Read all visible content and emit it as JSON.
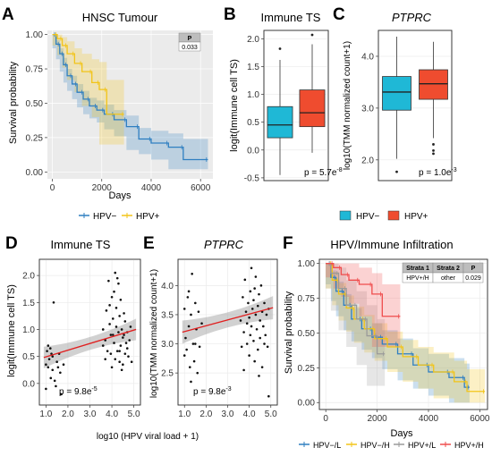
{
  "panels": {
    "A": {
      "letter": "A",
      "title": "HNSC Tumour",
      "ylabel": "Survival probability",
      "xlabel": "Days",
      "pbox_header": "P",
      "pbox_value": "0.033"
    },
    "B": {
      "letter": "B",
      "title": "Immune TS",
      "ylabel": "logit(Immune cell TS)",
      "pvalue": "p = 5.7e"
    },
    "C": {
      "letter": "C",
      "title": "PTPRC",
      "ylabel": "log10(TMM normalized count+1)",
      "pvalue": "p = 1.0e"
    },
    "D": {
      "letter": "D",
      "title": "Immune TS",
      "ylabel": "logit(Immune cell TS)",
      "pvalue": "p = 9.8e"
    },
    "E": {
      "letter": "E",
      "title": "PTPRC",
      "ylabel": "log10(TMM normalized count+1)",
      "pvalue": "p = 9.8e"
    },
    "F": {
      "letter": "F",
      "title": "HPV/Immune Infiltration",
      "ylabel": "Survival probability",
      "xlabel": "Days",
      "table_headers": [
        "Strata 1",
        "Strata 2",
        "P"
      ],
      "table_row": [
        "HPV+/H",
        "other",
        "0.029"
      ]
    },
    "shared_xlabel_DE": "log10 (HPV viral load + 1)"
  },
  "legends": {
    "A": [
      {
        "label": "HPV−",
        "color": "#2f7fc1"
      },
      {
        "label": "HPV+",
        "color": "#f2c418"
      }
    ],
    "BC": [
      {
        "label": "HPV−",
        "color": "#1fb8d6"
      },
      {
        "label": "HPV+",
        "color": "#ef4c2f"
      }
    ],
    "F": [
      {
        "label": "HPV−/L",
        "color": "#2f7fc1"
      },
      {
        "label": "HPV−/H",
        "color": "#f2c418"
      },
      {
        "label": "HPV+/L",
        "color": "#9a9a9a"
      },
      {
        "label": "HPV+/H",
        "color": "#ef4c4c"
      }
    ]
  },
  "chart_data": [
    {
      "panel": "A",
      "type": "line",
      "xlim": [
        -200,
        6500
      ],
      "ylim": [
        -0.05,
        1.03
      ],
      "xticks": [
        0,
        2000,
        4000,
        6000
      ],
      "yticks": [
        0.0,
        0.25,
        0.5,
        0.75,
        1.0
      ],
      "ytick_labels": [
        "0.00",
        "0.25",
        "0.50",
        "0.75",
        "1.00"
      ],
      "grid": true,
      "legend": "bottom",
      "series": [
        {
          "label": "HPV−",
          "color": "#2f7fc1",
          "x": [
            0,
            150,
            300,
            450,
            600,
            800,
            1000,
            1250,
            1500,
            1800,
            2100,
            2500,
            3000,
            3500,
            4000,
            4700,
            5300,
            6300
          ],
          "y": [
            1.0,
            0.93,
            0.86,
            0.78,
            0.7,
            0.64,
            0.58,
            0.53,
            0.48,
            0.45,
            0.42,
            0.38,
            0.33,
            0.24,
            0.21,
            0.18,
            0.09,
            0.09
          ],
          "lower": [
            1.0,
            0.9,
            0.82,
            0.73,
            0.65,
            0.59,
            0.53,
            0.47,
            0.42,
            0.39,
            0.36,
            0.31,
            0.26,
            0.16,
            0.13,
            0.09,
            0.02,
            0.02
          ],
          "upper": [
            1.0,
            0.96,
            0.9,
            0.83,
            0.75,
            0.7,
            0.64,
            0.59,
            0.54,
            0.52,
            0.49,
            0.45,
            0.41,
            0.32,
            0.3,
            0.28,
            0.24,
            0.24
          ]
        },
        {
          "label": "HPV+",
          "color": "#f2c418",
          "x": [
            0,
            200,
            400,
            600,
            900,
            1200,
            1600,
            1900,
            2200,
            2900
          ],
          "y": [
            1.0,
            0.97,
            0.92,
            0.86,
            0.79,
            0.73,
            0.65,
            0.6,
            0.42,
            0.42
          ],
          "lower": [
            1.0,
            0.92,
            0.85,
            0.76,
            0.67,
            0.58,
            0.48,
            0.4,
            0.2,
            0.2
          ],
          "upper": [
            1.0,
            1.0,
            0.98,
            0.95,
            0.9,
            0.86,
            0.82,
            0.8,
            0.67,
            0.67
          ]
        }
      ]
    },
    {
      "panel": "B",
      "type": "box",
      "ylim": [
        -0.55,
        2.15
      ],
      "yticks": [
        -0.5,
        0.0,
        0.5,
        1.0,
        1.5,
        2.0
      ],
      "ytick_labels": [
        "-0.5",
        "0.0",
        "0.5",
        "1.0",
        "1.5",
        "2.0"
      ],
      "boxes": [
        {
          "label": "HPV−",
          "color": "#1fb8d6",
          "min": -0.45,
          "q1": 0.22,
          "median": 0.45,
          "q3": 0.78,
          "max": 1.62,
          "outliers": [
            1.82
          ]
        },
        {
          "label": "HPV+",
          "color": "#ef4c2f",
          "min": -0.05,
          "q1": 0.42,
          "median": 0.67,
          "q3": 1.08,
          "max": 1.9,
          "outliers": [
            2.07
          ]
        }
      ],
      "p_exponent": "-8"
    },
    {
      "panel": "C",
      "type": "box",
      "ylim": [
        1.6,
        4.5
      ],
      "yticks": [
        2.0,
        3.0,
        4.0
      ],
      "ytick_labels": [
        "2.0",
        "3.0",
        "4.0"
      ],
      "boxes": [
        {
          "label": "HPV−",
          "color": "#1fb8d6",
          "min": 2.02,
          "q1": 2.96,
          "median": 3.31,
          "q3": 3.61,
          "max": 4.38,
          "outliers": [
            1.77
          ]
        },
        {
          "label": "HPV+",
          "color": "#ef4c2f",
          "min": 2.42,
          "q1": 3.17,
          "median": 3.47,
          "q3": 3.74,
          "max": 4.28,
          "outliers": [
            2.3,
            2.18,
            2.12
          ]
        }
      ],
      "p_exponent": "-3"
    },
    {
      "panel": "D",
      "type": "scatter",
      "xlim": [
        0.7,
        5.3
      ],
      "ylim": [
        -0.4,
        2.3
      ],
      "xticks": [
        1.0,
        2.0,
        3.0,
        4.0,
        5.0
      ],
      "yticks": [
        0.0,
        0.5,
        1.0,
        1.5,
        2.0
      ],
      "xtick_labels": [
        "1.0",
        "2.0",
        "3.0",
        "4.0",
        "5.0"
      ],
      "ytick_labels": [
        "0.0",
        "0.5",
        "1.0",
        "1.5",
        "2.0"
      ],
      "fit": {
        "x": [
          0.9,
          5.1
        ],
        "y": [
          0.48,
          1.0
        ],
        "ci": [
          0.2,
          0.12
        ]
      },
      "points": [
        [
          1.0,
          0.35
        ],
        [
          1.05,
          0.6
        ],
        [
          1.1,
          0.3
        ],
        [
          1.15,
          0.45
        ],
        [
          1.2,
          0.65
        ],
        [
          1.22,
          0.1
        ],
        [
          1.25,
          0.55
        ],
        [
          1.3,
          0.5
        ],
        [
          1.35,
          1.5
        ],
        [
          1.4,
          0.05
        ],
        [
          1.45,
          -0.05
        ],
        [
          1.5,
          0.4
        ],
        [
          1.55,
          0.3
        ],
        [
          1.6,
          0.55
        ],
        [
          1.65,
          0.2
        ],
        [
          1.7,
          -0.2
        ],
        [
          1.1,
          0.7
        ],
        [
          1.3,
          0.25
        ],
        [
          1.8,
          0.35
        ],
        [
          1.0,
          -0.1
        ],
        [
          3.6,
          1.0
        ],
        [
          3.7,
          0.8
        ],
        [
          3.75,
          1.35
        ],
        [
          3.8,
          0.6
        ],
        [
          3.85,
          1.9
        ],
        [
          3.9,
          1.1
        ],
        [
          3.95,
          0.55
        ],
        [
          4.0,
          1.6
        ],
        [
          4.0,
          0.3
        ],
        [
          4.05,
          0.9
        ],
        [
          4.1,
          1.7
        ],
        [
          4.1,
          0.75
        ],
        [
          4.15,
          2.05
        ],
        [
          4.15,
          0.45
        ],
        [
          4.2,
          1.4
        ],
        [
          4.2,
          1.05
        ],
        [
          4.25,
          0.6
        ],
        [
          4.3,
          0.95
        ],
        [
          4.3,
          1.85
        ],
        [
          4.35,
          0.4
        ],
        [
          4.35,
          1.25
        ],
        [
          4.4,
          0.7
        ],
        [
          4.4,
          1.55
        ],
        [
          4.45,
          1.0
        ],
        [
          4.5,
          0.35
        ],
        [
          4.5,
          0.85
        ],
        [
          4.55,
          1.3
        ],
        [
          4.6,
          0.55
        ],
        [
          4.6,
          1.15
        ],
        [
          4.65,
          0.75
        ],
        [
          4.7,
          0.95
        ],
        [
          4.75,
          0.5
        ],
        [
          4.8,
          0.8
        ],
        [
          4.85,
          1.05
        ],
        [
          4.9,
          0.4
        ],
        [
          3.7,
          0.45
        ],
        [
          3.9,
          1.45
        ],
        [
          4.25,
          1.95
        ],
        [
          4.45,
          0.25
        ],
        [
          4.05,
          1.2
        ],
        [
          3.95,
          0.9
        ],
        [
          4.7,
          0.65
        ],
        [
          3.6,
          0.7
        ],
        [
          4.55,
          0.9
        ],
        [
          4.35,
          0.6
        ]
      ],
      "p_exponent": "-5"
    },
    {
      "panel": "E",
      "type": "scatter",
      "xlim": [
        0.7,
        5.3
      ],
      "ylim": [
        1.95,
        4.45
      ],
      "xticks": [
        1.0,
        2.0,
        3.0,
        4.0,
        5.0
      ],
      "yticks": [
        2.5,
        3.0,
        3.5,
        4.0
      ],
      "xtick_labels": [
        "1.0",
        "2.0",
        "3.0",
        "4.0",
        "5.0"
      ],
      "ytick_labels": [
        "2.5",
        "3.0",
        "3.5",
        "4.0"
      ],
      "fit": {
        "x": [
          0.9,
          5.1
        ],
        "y": [
          3.2,
          3.62
        ],
        "ci": [
          0.2,
          0.13
        ]
      },
      "points": [
        [
          1.0,
          3.6
        ],
        [
          1.05,
          3.1
        ],
        [
          1.1,
          2.9
        ],
        [
          1.15,
          3.8
        ],
        [
          1.2,
          3.3
        ],
        [
          1.25,
          2.6
        ],
        [
          1.3,
          3.5
        ],
        [
          1.35,
          4.2
        ],
        [
          1.4,
          3.0
        ],
        [
          1.45,
          2.7
        ],
        [
          1.5,
          3.7
        ],
        [
          1.55,
          3.25
        ],
        [
          1.6,
          2.5
        ],
        [
          1.65,
          3.55
        ],
        [
          1.7,
          2.95
        ],
        [
          1.8,
          3.35
        ],
        [
          1.2,
          3.9
        ],
        [
          1.0,
          2.8
        ],
        [
          1.5,
          3.0
        ],
        [
          1.3,
          2.35
        ],
        [
          3.6,
          3.4
        ],
        [
          3.65,
          2.95
        ],
        [
          3.7,
          3.8
        ],
        [
          3.75,
          3.2
        ],
        [
          3.8,
          4.1
        ],
        [
          3.85,
          3.55
        ],
        [
          3.9,
          3.0
        ],
        [
          3.95,
          3.7
        ],
        [
          4.0,
          2.8
        ],
        [
          4.0,
          3.45
        ],
        [
          4.05,
          3.9
        ],
        [
          4.1,
          3.3
        ],
        [
          4.1,
          4.3
        ],
        [
          4.15,
          3.6
        ],
        [
          4.2,
          3.05
        ],
        [
          4.2,
          3.75
        ],
        [
          4.25,
          2.7
        ],
        [
          4.3,
          3.5
        ],
        [
          4.3,
          4.15
        ],
        [
          4.35,
          3.25
        ],
        [
          4.4,
          3.65
        ],
        [
          4.4,
          2.9
        ],
        [
          4.45,
          3.85
        ],
        [
          4.5,
          3.4
        ],
        [
          4.5,
          3.1
        ],
        [
          4.55,
          4.0
        ],
        [
          4.6,
          3.55
        ],
        [
          4.6,
          2.6
        ],
        [
          4.65,
          3.3
        ],
        [
          4.7,
          3.7
        ],
        [
          4.75,
          3.15
        ],
        [
          4.8,
          3.5
        ],
        [
          4.85,
          2.95
        ],
        [
          4.9,
          3.6
        ],
        [
          3.75,
          2.55
        ],
        [
          4.05,
          3.15
        ],
        [
          4.25,
          3.95
        ],
        [
          4.45,
          2.45
        ],
        [
          4.9,
          2.1
        ],
        [
          3.9,
          3.35
        ],
        [
          4.7,
          3.0
        ]
      ],
      "p_exponent": "-3"
    },
    {
      "panel": "F",
      "type": "line",
      "xlim": [
        -250,
        6300
      ],
      "ylim": [
        -0.05,
        1.03
      ],
      "xticks": [
        0,
        2000,
        4000,
        6000
      ],
      "yticks": [
        0.0,
        0.25,
        0.5,
        0.75,
        1.0
      ],
      "ytick_labels": [
        "0.00",
        "0.25",
        "0.50",
        "0.75",
        "1.00"
      ],
      "grid": true,
      "legend": "bottom",
      "series": [
        {
          "label": "HPV−/L",
          "color": "#2f7fc1",
          "x": [
            0,
            200,
            400,
            700,
            1000,
            1400,
            1800,
            2200,
            2800,
            3400,
            4000,
            4800,
            5400,
            5600
          ],
          "y": [
            1.0,
            0.9,
            0.8,
            0.7,
            0.6,
            0.53,
            0.47,
            0.42,
            0.35,
            0.27,
            0.22,
            0.18,
            0.11,
            0.11
          ],
          "lower": [
            1.0,
            0.85,
            0.73,
            0.62,
            0.52,
            0.44,
            0.38,
            0.32,
            0.24,
            0.16,
            0.1,
            0.05,
            0.0,
            0.0
          ],
          "upper": [
            1.0,
            0.95,
            0.87,
            0.78,
            0.68,
            0.62,
            0.57,
            0.52,
            0.46,
            0.39,
            0.35,
            0.32,
            0.28,
            0.28
          ]
        },
        {
          "label": "HPV−/H",
          "color": "#f2c418",
          "x": [
            0,
            250,
            500,
            800,
            1100,
            1500,
            1900,
            2400,
            3000,
            3600,
            4200,
            5000,
            5500,
            6200
          ],
          "y": [
            1.0,
            0.88,
            0.78,
            0.68,
            0.6,
            0.53,
            0.46,
            0.4,
            0.33,
            0.27,
            0.22,
            0.15,
            0.08,
            0.08
          ],
          "lower": [
            1.0,
            0.82,
            0.7,
            0.59,
            0.51,
            0.43,
            0.36,
            0.3,
            0.22,
            0.15,
            0.1,
            0.03,
            0.0,
            0.0
          ],
          "upper": [
            1.0,
            0.94,
            0.86,
            0.77,
            0.69,
            0.63,
            0.57,
            0.51,
            0.45,
            0.4,
            0.36,
            0.3,
            0.24,
            0.24
          ]
        },
        {
          "label": "HPV+/L",
          "color": "#9a9a9a",
          "x": [
            0,
            200,
            500,
            800,
            1200,
            1600,
            2000,
            2300
          ],
          "y": [
            1.0,
            0.93,
            0.82,
            0.7,
            0.6,
            0.48,
            0.35,
            0.35
          ],
          "lower": [
            1.0,
            0.82,
            0.66,
            0.52,
            0.4,
            0.27,
            0.12,
            0.12
          ],
          "upper": [
            1.0,
            1.0,
            0.97,
            0.88,
            0.8,
            0.7,
            0.6,
            0.6
          ]
        },
        {
          "label": "HPV+/H",
          "color": "#ef4c4c",
          "x": [
            0,
            300,
            600,
            900,
            1300,
            1800,
            2200,
            2900
          ],
          "y": [
            1.0,
            0.97,
            0.92,
            0.88,
            0.85,
            0.78,
            0.62,
            0.62
          ],
          "lower": [
            1.0,
            0.9,
            0.82,
            0.76,
            0.71,
            0.62,
            0.4,
            0.4
          ],
          "upper": [
            1.0,
            1.0,
            1.0,
            1.0,
            0.97,
            0.93,
            0.85,
            0.85
          ]
        }
      ]
    }
  ]
}
